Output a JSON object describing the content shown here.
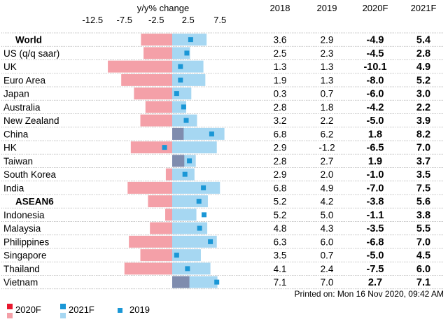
{
  "chart_data": {
    "type": "bar",
    "axis_title": "y/y% change",
    "ticks": [
      "-12.5",
      "-7.5",
      "-2.5",
      "2.5",
      "7.5"
    ],
    "tick_values": [
      -12.5,
      -7.5,
      -2.5,
      2.5,
      7.5
    ],
    "xlim": [
      -15.5,
      10.5
    ],
    "columns": [
      "2018",
      "2019",
      "2020F",
      "2021F"
    ],
    "rows": [
      {
        "label": "World",
        "bold": true,
        "y2018": "3.6",
        "y2019": "2.9",
        "f2020": "-4.9",
        "f2021": "5.4",
        "v2019": 2.9,
        "v2020": -4.9,
        "v2021": 5.4
      },
      {
        "label": "US (q/q saar)",
        "bold": false,
        "y2018": "2.5",
        "y2019": "2.3",
        "f2020": "-4.5",
        "f2021": "2.8",
        "v2019": 2.3,
        "v2020": -4.5,
        "v2021": 2.8
      },
      {
        "label": "UK",
        "bold": false,
        "y2018": "1.3",
        "y2019": "1.3",
        "f2020": "-10.1",
        "f2021": "4.9",
        "v2019": 1.3,
        "v2020": -10.1,
        "v2021": 4.9
      },
      {
        "label": "Euro Area",
        "bold": false,
        "y2018": "1.9",
        "y2019": "1.3",
        "f2020": "-8.0",
        "f2021": "5.2",
        "v2019": 1.3,
        "v2020": -8.0,
        "v2021": 5.2
      },
      {
        "label": "Japan",
        "bold": false,
        "y2018": "0.3",
        "y2019": "0.7",
        "f2020": "-6.0",
        "f2021": "3.0",
        "v2019": 0.7,
        "v2020": -6.0,
        "v2021": 3.0
      },
      {
        "label": "Australia",
        "bold": false,
        "y2018": "2.8",
        "y2019": "1.8",
        "f2020": "-4.2",
        "f2021": "2.2",
        "v2019": 1.8,
        "v2020": -4.2,
        "v2021": 2.2
      },
      {
        "label": "New Zealand",
        "bold": false,
        "y2018": "3.2",
        "y2019": "2.2",
        "f2020": "-5.0",
        "f2021": "3.9",
        "v2019": 2.2,
        "v2020": -5.0,
        "v2021": 3.9
      },
      {
        "label": "China",
        "bold": false,
        "y2018": "6.8",
        "y2019": "6.2",
        "f2020": "1.8",
        "f2021": "8.2",
        "v2019": 6.2,
        "v2020": 1.8,
        "v2021": 8.2
      },
      {
        "label": "HK",
        "bold": false,
        "y2018": "2.9",
        "y2019": "-1.2",
        "f2020": "-6.5",
        "f2021": "7.0",
        "v2019": -1.2,
        "v2020": -6.5,
        "v2021": 7.0
      },
      {
        "label": "Taiwan",
        "bold": false,
        "y2018": "2.8",
        "y2019": "2.7",
        "f2020": "1.9",
        "f2021": "3.7",
        "v2019": 2.7,
        "v2020": 1.9,
        "v2021": 3.7
      },
      {
        "label": "South Korea",
        "bold": false,
        "y2018": "2.9",
        "y2019": "2.0",
        "f2020": "-1.0",
        "f2021": "3.5",
        "v2019": 2.0,
        "v2020": -1.0,
        "v2021": 3.5
      },
      {
        "label": "India",
        "bold": false,
        "y2018": "6.8",
        "y2019": "4.9",
        "f2020": "-7.0",
        "f2021": "7.5",
        "v2019": 4.9,
        "v2020": -7.0,
        "v2021": 7.5
      },
      {
        "label": "ASEAN6",
        "bold": true,
        "y2018": "5.2",
        "y2019": "4.2",
        "f2020": "-3.8",
        "f2021": "5.6",
        "v2019": 4.2,
        "v2020": -3.8,
        "v2021": 5.6
      },
      {
        "label": "Indonesia",
        "bold": false,
        "y2018": "5.2",
        "y2019": "5.0",
        "f2020": "-1.1",
        "f2021": "3.8",
        "v2019": 5.0,
        "v2020": -1.1,
        "v2021": 3.8
      },
      {
        "label": "Malaysia",
        "bold": false,
        "y2018": "4.8",
        "y2019": "4.3",
        "f2020": "-3.5",
        "f2021": "5.5",
        "v2019": 4.3,
        "v2020": -3.5,
        "v2021": 5.5
      },
      {
        "label": "Philippines",
        "bold": false,
        "y2018": "6.3",
        "y2019": "6.0",
        "f2020": "-6.8",
        "f2021": "7.0",
        "v2019": 6.0,
        "v2020": -6.8,
        "v2021": 7.0
      },
      {
        "label": "Singapore",
        "bold": false,
        "y2018": "3.5",
        "y2019": "0.7",
        "f2020": "-5.0",
        "f2021": "4.5",
        "v2019": 0.7,
        "v2020": -5.0,
        "v2021": 4.5
      },
      {
        "label": "Thailand",
        "bold": false,
        "y2018": "4.1",
        "y2019": "2.4",
        "f2020": "-7.5",
        "f2021": "6.0",
        "v2019": 2.4,
        "v2020": -7.5,
        "v2021": 6.0
      },
      {
        "label": "Vietnam",
        "bold": false,
        "y2018": "7.1",
        "y2019": "7.0",
        "f2020": "2.7",
        "f2021": "7.1",
        "v2019": 7.0,
        "v2020": 2.7,
        "v2021": 7.1
      }
    ],
    "legend": {
      "f2020": "2020F",
      "f2021": "2021F",
      "y2019": "2019"
    },
    "stamp": "Printed on: Mon 16 Nov 2020, 09:42 AM",
    "colors": {
      "neg2020": "#f4a0a8",
      "pos2020": "#7f8cae",
      "bar2021": "#a6d7f2",
      "marker2019": "#1a97d6",
      "legend2020": "#e8182e",
      "legend2020_light": "#f4a0a8",
      "legend2021": "#1a97d6",
      "legend2021_light": "#a6d7f2",
      "separator": "#9a9a9a"
    }
  }
}
